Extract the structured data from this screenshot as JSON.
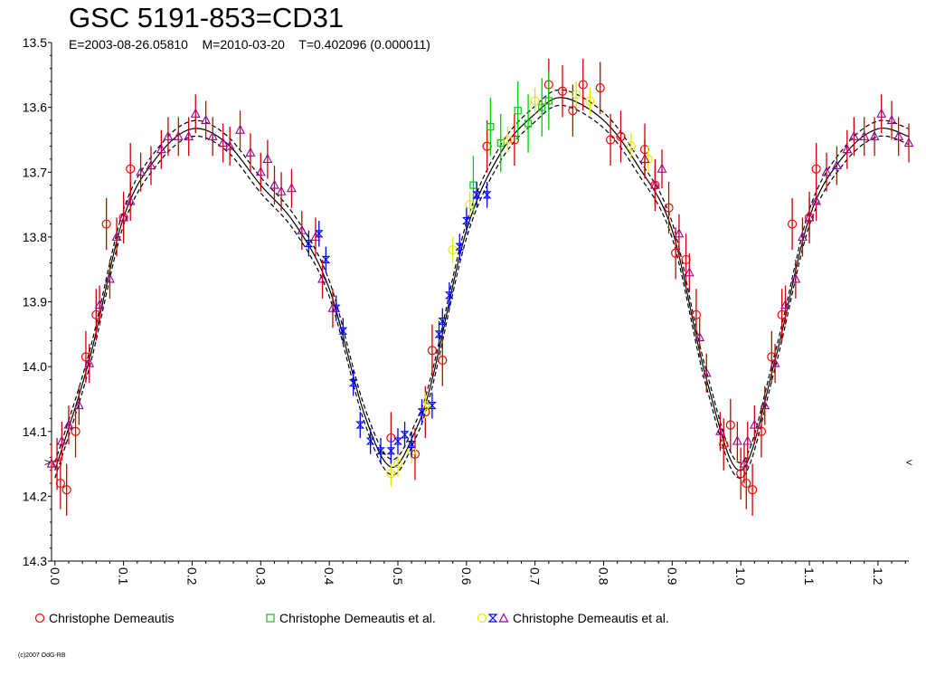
{
  "header": {
    "title": "GSC 5191-853=CD31",
    "subtitle": "E=2003-08-26.05810    M=2010-03-20    T=0.402096 (0.000011)"
  },
  "legend": [
    {
      "label": "Christophe Demeautis",
      "markers": [
        {
          "shape": "circle",
          "color": "#ff0000"
        }
      ]
    },
    {
      "label": "Christophe Demeautis et al.",
      "markers": [
        {
          "shape": "square",
          "color": "#00cc00"
        }
      ]
    },
    {
      "label": "Christophe Demeautis et al.",
      "markers": [
        {
          "shape": "circle",
          "color": "#e6e600"
        },
        {
          "shape": "hourglass",
          "color": "#0000ff"
        },
        {
          "shape": "triangle",
          "color": "#990099"
        }
      ]
    }
  ],
  "credit": "(c)2007 OdG-RB",
  "edge_marks": {
    "left": ">",
    "right": "<"
  },
  "chart_data": {
    "type": "scatter",
    "title": "GSC 5191-853=CD31",
    "subtitle": "E=2003-08-26.05810    M=2010-03-20    T=0.402096 (0.000011)",
    "xlabel": "",
    "ylabel": "",
    "xlim": [
      -0.005,
      1.245
    ],
    "ylim": [
      13.5,
      14.3
    ],
    "y_inverted": true,
    "grid": false,
    "legend_position": "bottom",
    "x_ticks": [
      "0.0",
      "0.1",
      "0.2",
      "0.3",
      "0.4",
      "0.5",
      "0.6",
      "0.7",
      "0.8",
      "0.9",
      "1.0",
      "1.1",
      "1.2"
    ],
    "y_ticks": [
      "13.5",
      "13.6",
      "13.7",
      "13.8",
      "13.9",
      "14.0",
      "14.1",
      "14.2",
      "14.3"
    ],
    "fit_curve": {
      "color": "#000000",
      "points": [
        [
          0.0,
          14.16
        ],
        [
          0.05,
          13.99
        ],
        [
          0.1,
          13.77
        ],
        [
          0.15,
          13.675
        ],
        [
          0.2,
          13.633
        ],
        [
          0.25,
          13.655
        ],
        [
          0.3,
          13.72
        ],
        [
          0.35,
          13.78
        ],
        [
          0.4,
          13.88
        ],
        [
          0.45,
          14.07
        ],
        [
          0.49,
          14.155
        ],
        [
          0.525,
          14.1
        ],
        [
          0.55,
          14.02
        ],
        [
          0.6,
          13.79
        ],
        [
          0.65,
          13.67
        ],
        [
          0.7,
          13.61
        ],
        [
          0.74,
          13.585
        ],
        [
          0.8,
          13.62
        ],
        [
          0.85,
          13.69
        ],
        [
          0.9,
          13.79
        ],
        [
          0.95,
          14.02
        ],
        [
          1.0,
          14.16
        ],
        [
          1.05,
          13.99
        ],
        [
          1.1,
          13.77
        ],
        [
          1.15,
          13.675
        ],
        [
          1.2,
          13.633
        ],
        [
          1.245,
          13.645
        ]
      ],
      "band_offset": 0.012
    },
    "series": [
      {
        "name": "Christophe Demeautis",
        "marker": "circle",
        "color": "#ff0000",
        "errbar_color": "#cc0000",
        "error": 0.04,
        "points": [
          [
            0.003,
            14.15
          ],
          [
            0.008,
            14.18
          ],
          [
            0.017,
            14.19
          ],
          [
            0.03,
            14.1
          ],
          [
            0.045,
            13.985
          ],
          [
            0.06,
            13.92
          ],
          [
            0.075,
            13.78
          ],
          [
            0.1,
            13.77
          ],
          [
            0.11,
            13.695
          ],
          [
            0.49,
            14.11
          ],
          [
            0.525,
            14.135
          ],
          [
            0.54,
            14.07
          ],
          [
            0.55,
            13.975
          ],
          [
            0.565,
            13.99
          ],
          [
            0.63,
            13.66
          ],
          [
            0.67,
            13.65
          ],
          [
            0.72,
            13.565
          ],
          [
            0.74,
            13.575
          ],
          [
            0.755,
            13.605
          ],
          [
            0.77,
            13.565
          ],
          [
            0.795,
            13.57
          ],
          [
            0.81,
            13.65
          ],
          [
            0.825,
            13.645
          ],
          [
            0.86,
            13.665
          ],
          [
            0.875,
            13.72
          ],
          [
            0.895,
            13.755
          ],
          [
            0.905,
            13.825
          ],
          [
            0.92,
            13.835
          ],
          [
            0.935,
            13.92
          ],
          [
            0.975,
            14.12
          ],
          [
            0.985,
            14.09
          ],
          [
            1.0,
            14.165
          ],
          [
            1.008,
            14.18
          ],
          [
            1.017,
            14.19
          ],
          [
            1.03,
            14.1
          ],
          [
            1.045,
            13.985
          ],
          [
            1.06,
            13.92
          ],
          [
            1.075,
            13.78
          ],
          [
            1.1,
            13.77
          ],
          [
            1.11,
            13.695
          ]
        ]
      },
      {
        "name": "Christophe Demeautis et al.",
        "marker": "square",
        "color": "#00cc00",
        "errbar_color": "#00cc00",
        "error": 0.045,
        "points": [
          [
            0.61,
            13.72
          ],
          [
            0.635,
            13.63
          ],
          [
            0.65,
            13.655
          ],
          [
            0.675,
            13.605
          ],
          [
            0.69,
            13.625
          ],
          [
            0.71,
            13.6
          ],
          [
            0.72,
            13.59
          ]
        ]
      },
      {
        "name": "Christophe Demeautis et al.",
        "marker": "circle",
        "color": "#e6e600",
        "errbar_color": "#e6e600",
        "error": 0.02,
        "points": [
          [
            0.49,
            14.165
          ],
          [
            0.5,
            14.15
          ],
          [
            0.52,
            14.13
          ],
          [
            0.54,
            14.06
          ],
          [
            0.58,
            13.82
          ],
          [
            0.605,
            13.75
          ],
          [
            0.66,
            13.65
          ],
          [
            0.7,
            13.59
          ],
          [
            0.76,
            13.58
          ],
          [
            0.78,
            13.59
          ],
          [
            0.84,
            13.66
          ],
          [
            0.865,
            13.68
          ]
        ]
      },
      {
        "name": "Christophe Demeautis et al.",
        "marker": "hourglass",
        "color": "#0000ff",
        "errbar_color": "#0000ff",
        "error": 0.02,
        "points": [
          [
            0.37,
            13.81
          ],
          [
            0.385,
            13.795
          ],
          [
            0.395,
            13.835
          ],
          [
            0.41,
            13.91
          ],
          [
            0.42,
            13.945
          ],
          [
            0.435,
            14.025
          ],
          [
            0.445,
            14.09
          ],
          [
            0.46,
            14.115
          ],
          [
            0.475,
            14.13
          ],
          [
            0.49,
            14.13
          ],
          [
            0.5,
            14.115
          ],
          [
            0.51,
            14.105
          ],
          [
            0.52,
            14.12
          ],
          [
            0.535,
            14.07
          ],
          [
            0.55,
            14.06
          ],
          [
            0.56,
            13.95
          ],
          [
            0.565,
            13.93
          ],
          [
            0.575,
            13.89
          ],
          [
            0.59,
            13.815
          ],
          [
            0.6,
            13.775
          ],
          [
            0.615,
            13.735
          ],
          [
            0.63,
            13.735
          ]
        ]
      },
      {
        "name": "Christophe Demeautis et al.",
        "marker": "triangle",
        "color": "#990099",
        "errbar_color": "#cc0000",
        "error": 0.03,
        "points": [
          [
            -0.005,
            14.15
          ],
          [
            0.01,
            14.115
          ],
          [
            0.02,
            14.09
          ],
          [
            0.035,
            14.06
          ],
          [
            0.05,
            13.995
          ],
          [
            0.065,
            13.905
          ],
          [
            0.08,
            13.865
          ],
          [
            0.09,
            13.8
          ],
          [
            0.1,
            13.77
          ],
          [
            0.11,
            13.745
          ],
          [
            0.125,
            13.7
          ],
          [
            0.14,
            13.69
          ],
          [
            0.155,
            13.665
          ],
          [
            0.165,
            13.645
          ],
          [
            0.18,
            13.645
          ],
          [
            0.195,
            13.645
          ],
          [
            0.205,
            13.61
          ],
          [
            0.22,
            13.62
          ],
          [
            0.23,
            13.645
          ],
          [
            0.245,
            13.655
          ],
          [
            0.255,
            13.66
          ],
          [
            0.27,
            13.635
          ],
          [
            0.285,
            13.67
          ],
          [
            0.3,
            13.7
          ],
          [
            0.31,
            13.68
          ],
          [
            0.32,
            13.72
          ],
          [
            0.33,
            13.73
          ],
          [
            0.345,
            13.725
          ],
          [
            0.36,
            13.79
          ],
          [
            0.38,
            13.8
          ],
          [
            0.39,
            13.865
          ],
          [
            0.405,
            13.91
          ],
          [
            0.86,
            13.68
          ],
          [
            0.875,
            13.72
          ],
          [
            0.885,
            13.695
          ],
          [
            0.91,
            13.795
          ],
          [
            0.925,
            13.855
          ],
          [
            0.94,
            13.955
          ],
          [
            0.95,
            14.01
          ],
          [
            0.97,
            14.1
          ],
          [
            0.995,
            14.115
          ],
          [
            1.005,
            14.15
          ],
          [
            1.01,
            14.115
          ],
          [
            1.02,
            14.09
          ],
          [
            1.035,
            14.06
          ],
          [
            1.05,
            13.995
          ],
          [
            1.065,
            13.905
          ],
          [
            1.08,
            13.865
          ],
          [
            1.09,
            13.8
          ],
          [
            1.1,
            13.77
          ],
          [
            1.11,
            13.745
          ],
          [
            1.125,
            13.7
          ],
          [
            1.14,
            13.69
          ],
          [
            1.155,
            13.665
          ],
          [
            1.165,
            13.645
          ],
          [
            1.18,
            13.645
          ],
          [
            1.195,
            13.645
          ],
          [
            1.205,
            13.61
          ],
          [
            1.22,
            13.62
          ],
          [
            1.23,
            13.645
          ],
          [
            1.245,
            13.655
          ]
        ]
      }
    ]
  }
}
